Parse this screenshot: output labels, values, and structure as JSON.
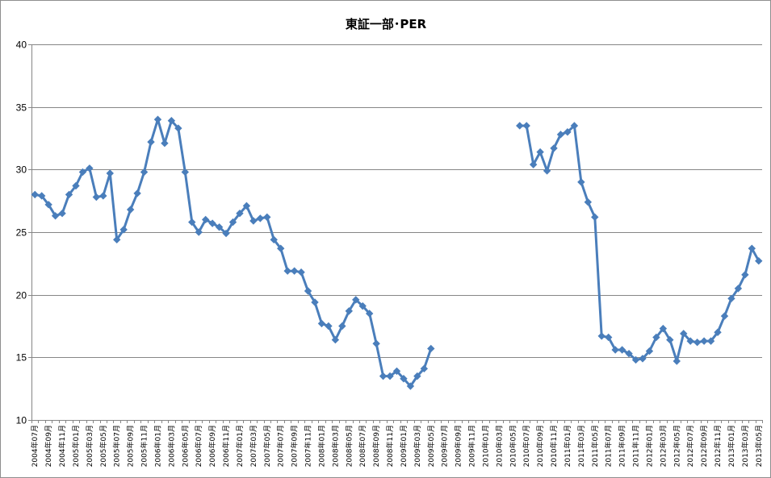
{
  "chart_data": {
    "type": "line",
    "title": "東証一部･PER",
    "xlabel": "",
    "ylabel": "",
    "ylim": [
      10,
      40
    ],
    "yticks": [
      10,
      15,
      20,
      25,
      30,
      35,
      40
    ],
    "grid": "horizontal",
    "legend": "none",
    "colors": {
      "line": "#4a7ebb",
      "marker": "#4a7ebb",
      "grid": "#868686",
      "axis": "#868686"
    },
    "x_tick_labels": [
      "2004年07月",
      "2004年09月",
      "2004年11月",
      "2005年01月",
      "2005年03月",
      "2005年05月",
      "2005年07月",
      "2005年09月",
      "2005年11月",
      "2006年01月",
      "2006年03月",
      "2006年05月",
      "2006年07月",
      "2006年09月",
      "2006年11月",
      "2007年01月",
      "2007年03月",
      "2007年05月",
      "2007年07月",
      "2007年09月",
      "2007年11月",
      "2008年01月",
      "2008年03月",
      "2008年05月",
      "2008年07月",
      "2008年09月",
      "2008年11月",
      "2009年01月",
      "2009年03月",
      "2009年05月",
      "2009年07月",
      "2009年09月",
      "2009年11月",
      "2010年01月",
      "2010年03月",
      "2010年05月",
      "2010年07月",
      "2010年09月",
      "2010年11月",
      "2011年01月",
      "2011年03月",
      "2011年05月",
      "2011年07月",
      "2011年09月",
      "2011年11月",
      "2012年01月",
      "2012年03月",
      "2012年05月",
      "2012年07月",
      "2012年09月",
      "2012年11月",
      "2013年01月",
      "2013年03月",
      "2013年05月"
    ],
    "series": [
      {
        "values": [
          28.0,
          27.9,
          27.2,
          26.3,
          26.5,
          28.0,
          28.7,
          29.8,
          30.1,
          27.8,
          27.9,
          29.7,
          24.4,
          25.2,
          26.8,
          28.1,
          29.8,
          32.2,
          34.0,
          32.1,
          33.9,
          33.3,
          29.8,
          25.8,
          25.0,
          26.0,
          25.7,
          25.4,
          24.9,
          25.8,
          26.5,
          27.1,
          25.9,
          26.1,
          26.2,
          24.4,
          23.7,
          21.9,
          21.9,
          21.8,
          20.3,
          19.4,
          17.7,
          17.5,
          16.4,
          17.5,
          18.7,
          19.6,
          19.1,
          18.5,
          16.1,
          13.5,
          13.5,
          13.9,
          13.3,
          12.7,
          13.5,
          14.1,
          15.7,
          null,
          null,
          null,
          null,
          null,
          null,
          null,
          null,
          null,
          null,
          null,
          null,
          33.5,
          33.5,
          30.4,
          31.4,
          29.9,
          31.7,
          32.8,
          33.0,
          33.5,
          29.0,
          27.4,
          26.2,
          16.7,
          16.6,
          15.6,
          15.6,
          15.3,
          14.8,
          14.9,
          15.5,
          16.6,
          17.3,
          16.4,
          14.7,
          16.9,
          16.3,
          16.2,
          16.3,
          16.3,
          17.0,
          18.3,
          19.7,
          20.5,
          21.6,
          23.7,
          22.7
        ]
      }
    ]
  }
}
